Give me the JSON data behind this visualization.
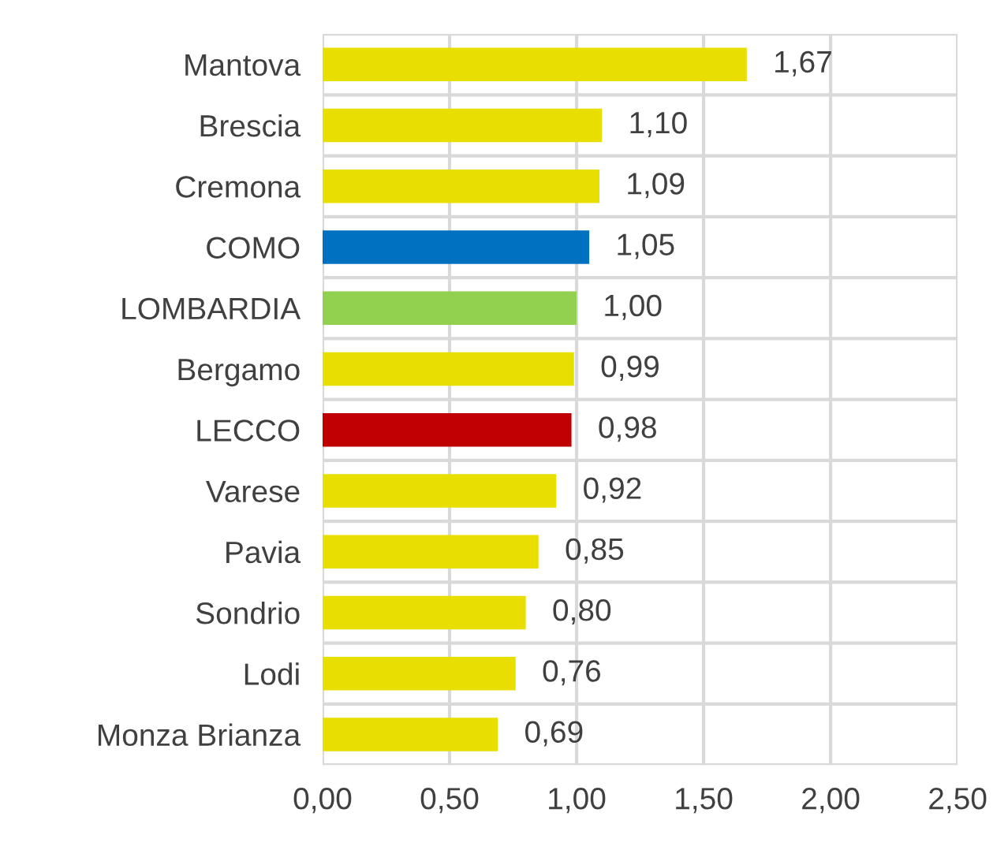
{
  "chart_data": {
    "type": "bar",
    "orientation": "horizontal",
    "categories": [
      "Mantova",
      "Brescia",
      "Cremona",
      "COMO",
      "LOMBARDIA",
      "Bergamo",
      "LECCO",
      "Varese",
      "Pavia",
      "Sondrio",
      "Lodi",
      "Monza Brianza"
    ],
    "values": [
      1.67,
      1.1,
      1.09,
      1.05,
      1.0,
      0.99,
      0.98,
      0.92,
      0.85,
      0.8,
      0.76,
      0.69
    ],
    "value_labels": [
      "1,67",
      "1,10",
      "1,09",
      "1,05",
      "1,00",
      "0,99",
      "0,98",
      "0,92",
      "0,85",
      "0,80",
      "0,76",
      "0,69"
    ],
    "colors": [
      "#e8de00",
      "#e8de00",
      "#e8de00",
      "#0070c0",
      "#92d050",
      "#e8de00",
      "#c00000",
      "#e8de00",
      "#e8de00",
      "#e8de00",
      "#e8de00",
      "#e8de00"
    ],
    "xlim": [
      0,
      2.5
    ],
    "xticks": [
      {
        "value": 0,
        "label": "0,00"
      },
      {
        "value": 0.5,
        "label": "0,50"
      },
      {
        "value": 1.0,
        "label": "1,00"
      },
      {
        "value": 1.5,
        "label": "1,50"
      },
      {
        "value": 2.0,
        "label": "2,00"
      },
      {
        "value": 2.5,
        "label": "2,50"
      }
    ],
    "grid": true
  }
}
